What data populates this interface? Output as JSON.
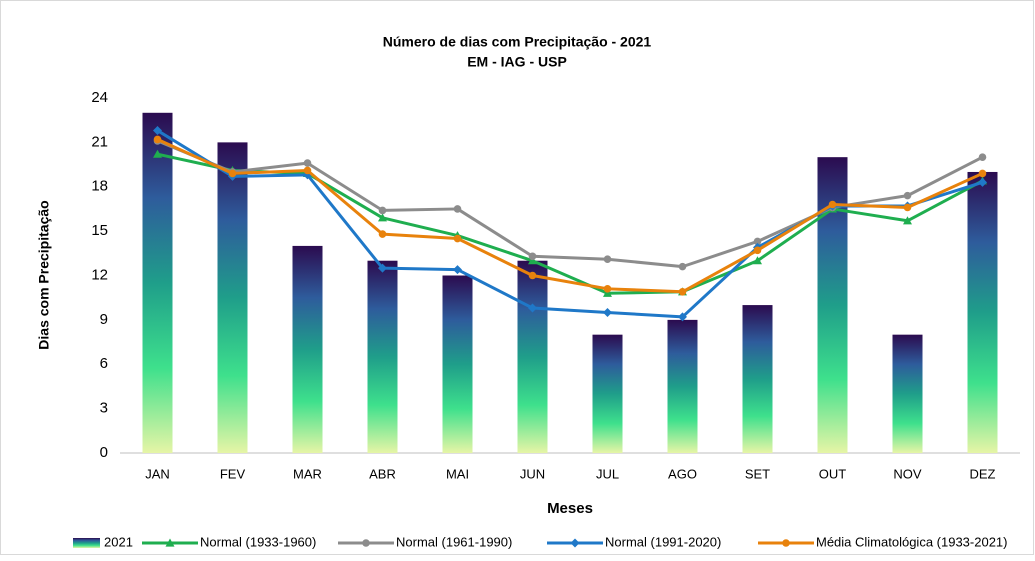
{
  "chart_data": {
    "type": "bar",
    "title": "Número de dias com Precipitação - 2021",
    "subtitle": "EM - IAG - USP",
    "x_label": "Meses",
    "y_label": "Dias com Precipitação",
    "categories": [
      "JAN",
      "FEV",
      "MAR",
      "ABR",
      "MAI",
      "JUN",
      "JUL",
      "AGO",
      "SET",
      "OUT",
      "NOV",
      "DEZ"
    ],
    "ylim": [
      0,
      24
    ],
    "yticks": [
      0,
      3,
      6,
      9,
      12,
      15,
      18,
      21,
      24
    ],
    "grid": false,
    "legend": "bottom",
    "series": [
      {
        "name": "2021",
        "type": "bar",
        "color": [
          "#2b0b4f",
          "#2e5c9c",
          "#1f9e8a",
          "#3ee08c",
          "#e6f5a6"
        ],
        "values": [
          23,
          21,
          14,
          13,
          12,
          13,
          8,
          9,
          10,
          20,
          8,
          19
        ]
      },
      {
        "name": "Normal (1933-1960)",
        "type": "line",
        "marker": "triangle",
        "color": "#1fae4f",
        "values": [
          20.2,
          19.1,
          18.9,
          15.9,
          14.7,
          13.0,
          10.8,
          10.9,
          13.0,
          16.5,
          15.7,
          18.4
        ]
      },
      {
        "name": "Normal (1961-1990)",
        "type": "line",
        "marker": "circle",
        "color": "#8c8c8c",
        "values": [
          21.1,
          19.0,
          19.6,
          16.4,
          16.5,
          13.3,
          13.1,
          12.6,
          14.3,
          16.6,
          17.4,
          20.0
        ]
      },
      {
        "name": "Normal (1991-2020)",
        "type": "line",
        "marker": "diamond",
        "color": "#1f78c8",
        "values": [
          21.8,
          18.7,
          18.8,
          12.5,
          12.4,
          9.8,
          9.5,
          9.2,
          13.9,
          16.7,
          16.7,
          18.3
        ]
      },
      {
        "name": "Média Climatológica (1933-2021)",
        "type": "line",
        "marker": "circle",
        "color": "#e8820c",
        "values": [
          21.2,
          18.9,
          19.1,
          14.8,
          14.5,
          12.0,
          11.1,
          10.9,
          13.7,
          16.8,
          16.6,
          18.9
        ]
      }
    ]
  }
}
